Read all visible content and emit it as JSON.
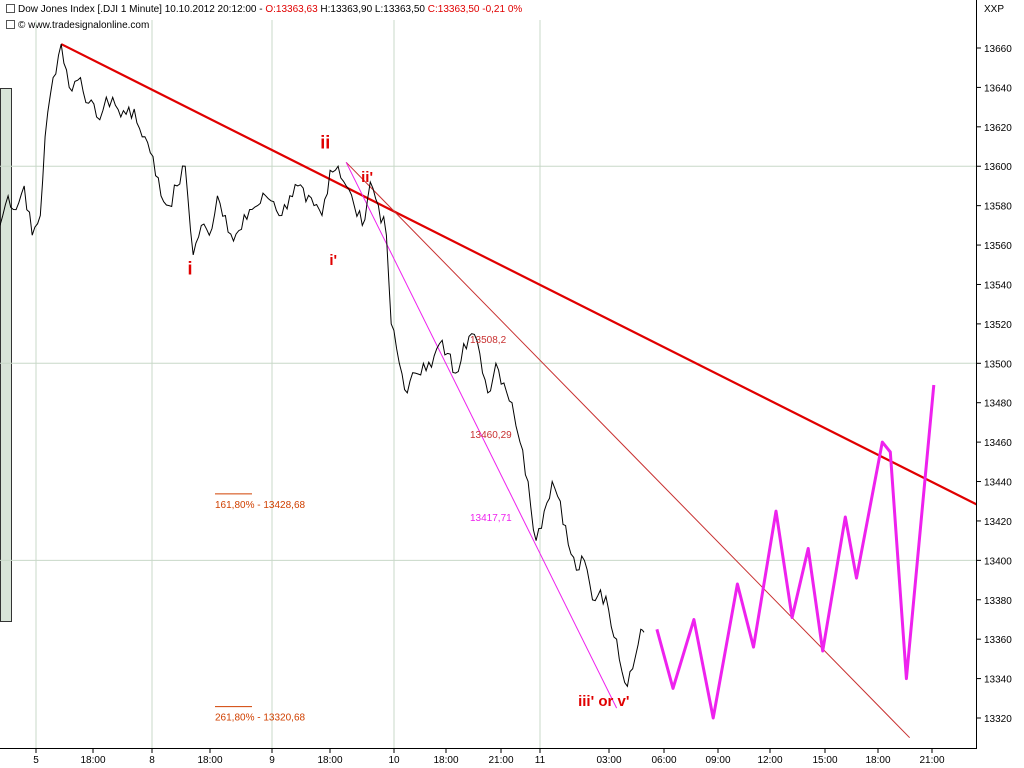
{
  "header": {
    "instrument": "Dow Jones Index [.DJI  1 Minute] 10.10.2012 20:12:00 - ",
    "open": "O:13363,63",
    "high": "H:13363,90",
    "low": "L:13363,50",
    "close": "C:13363,50",
    "change": "-0,21",
    "change_pct": "0%",
    "source": "© www.tradesignalonline.com",
    "symbol": "XXP"
  },
  "colors": {
    "price": "#000000",
    "trendline": "#e00000",
    "thin_line": "#c83030",
    "projection": "#ee22ee",
    "fib": "#d04000",
    "grid": "#c8d8c8",
    "negative": "#e00000"
  },
  "chart_data": {
    "type": "line",
    "title": "Dow Jones Index [.DJI  1 Minute]",
    "ylim": [
      13310,
      13680
    ],
    "y_ticks": [
      13320,
      13340,
      13360,
      13380,
      13400,
      13420,
      13440,
      13460,
      13480,
      13500,
      13520,
      13540,
      13560,
      13580,
      13600,
      13620,
      13640,
      13660
    ],
    "y_tick_labels": [
      "13320",
      "13340",
      "13360",
      "13380",
      "13400",
      "13420",
      "13440",
      "13460",
      "13480",
      "13500",
      "13520",
      "13540",
      "13560",
      "13580",
      "13600",
      "13620",
      "13640",
      "13660"
    ],
    "x_tick_labels": [
      "5",
      "18:00",
      "8",
      "18:00",
      "9",
      "18:00",
      "10",
      "18:00",
      "21:00",
      "11",
      "03:00",
      "06:00",
      "09:00",
      "12:00",
      "15:00",
      "18:00",
      "21:00"
    ],
    "x_major_labels": [
      "5",
      "8",
      "9",
      "10",
      "11"
    ],
    "grid": true,
    "price_series": {
      "name": "Dow Jones Index",
      "points": [
        [
          0.0,
          13570
        ],
        [
          0.5,
          13585
        ],
        [
          1.0,
          13578
        ],
        [
          1.5,
          13590
        ],
        [
          2.0,
          13565
        ],
        [
          2.5,
          13575
        ],
        [
          2.8,
          13615
        ],
        [
          3.3,
          13645
        ],
        [
          3.8,
          13662
        ],
        [
          4.3,
          13640
        ],
        [
          5.0,
          13645
        ],
        [
          5.5,
          13632
        ],
        [
          6.0,
          13625
        ],
        [
          7.0,
          13635
        ],
        [
          7.5,
          13625
        ],
        [
          8.0,
          13630
        ],
        [
          8.5,
          13622
        ],
        [
          9.0,
          13615
        ],
        [
          9.5,
          13605
        ],
        [
          10.0,
          13585
        ],
        [
          10.5,
          13580
        ],
        [
          11.0,
          13590
        ],
        [
          11.5,
          13600
        ],
        [
          12.0,
          13555
        ],
        [
          12.5,
          13570
        ],
        [
          13.0,
          13565
        ],
        [
          13.5,
          13585
        ],
        [
          14.0,
          13575
        ],
        [
          14.5,
          13562
        ],
        [
          15.0,
          13568
        ],
        [
          15.5,
          13578
        ],
        [
          16.0,
          13580
        ],
        [
          16.5,
          13585
        ],
        [
          17.0,
          13582
        ],
        [
          17.5,
          13575
        ],
        [
          18.0,
          13585
        ],
        [
          18.5,
          13590
        ],
        [
          19.0,
          13582
        ],
        [
          19.5,
          13580
        ],
        [
          20.0,
          13575
        ],
        [
          20.5,
          13598
        ],
        [
          21.0,
          13600
        ],
        [
          21.5,
          13590
        ],
        [
          22.0,
          13580
        ],
        [
          22.5,
          13570
        ],
        [
          23.0,
          13592
        ],
        [
          23.5,
          13580
        ],
        [
          24.0,
          13565
        ],
        [
          24.3,
          13520
        ],
        [
          24.8,
          13500
        ],
        [
          25.3,
          13485
        ],
        [
          25.8,
          13495
        ],
        [
          26.3,
          13500
        ],
        [
          26.8,
          13498
        ],
        [
          27.3,
          13510
        ],
        [
          27.8,
          13505
        ],
        [
          28.3,
          13495
        ],
        [
          28.8,
          13510
        ],
        [
          29.3,
          13515
        ],
        [
          29.8,
          13505
        ],
        [
          30.3,
          13485
        ],
        [
          30.8,
          13500
        ],
        [
          31.3,
          13490
        ],
        [
          31.8,
          13480
        ],
        [
          32.3,
          13460
        ],
        [
          32.8,
          13440
        ],
        [
          33.3,
          13410
        ],
        [
          33.8,
          13425
        ],
        [
          34.3,
          13440
        ],
        [
          34.8,
          13430
        ],
        [
          35.3,
          13408
        ],
        [
          35.8,
          13395
        ],
        [
          36.3,
          13400
        ],
        [
          36.8,
          13380
        ],
        [
          37.3,
          13385
        ],
        [
          37.8,
          13375
        ],
        [
          38.3,
          13360
        ],
        [
          38.8,
          13338
        ],
        [
          39.3,
          13345
        ],
        [
          39.8,
          13365
        ],
        [
          40.0,
          13363.5
        ]
      ]
    },
    "projection_series": {
      "name": "projection",
      "points": [
        [
          40.8,
          13365
        ],
        [
          41.8,
          13335
        ],
        [
          43.1,
          13370
        ],
        [
          44.3,
          13320
        ],
        [
          45.8,
          13388
        ],
        [
          46.8,
          13356
        ],
        [
          48.2,
          13425
        ],
        [
          49.2,
          13371
        ],
        [
          50.2,
          13406
        ],
        [
          51.1,
          13354
        ],
        [
          52.5,
          13422
        ],
        [
          53.2,
          13391
        ],
        [
          54.8,
          13460
        ],
        [
          55.3,
          13455
        ],
        [
          56.3,
          13340
        ],
        [
          58.0,
          13489
        ]
      ]
    },
    "trend_lines": [
      {
        "kind": "main",
        "from": [
          3.8,
          13662
        ],
        "to": [
          70,
          13390
        ]
      },
      {
        "kind": "thin",
        "from": [
          21.5,
          13602
        ],
        "to": [
          56.5,
          13310
        ]
      },
      {
        "kind": "magenta",
        "from": [
          21.5,
          13602
        ],
        "to": [
          38.3,
          13325
        ]
      }
    ],
    "horizontal_levels": [
      {
        "value": 13428.68,
        "label": "161,80% - 13428,68"
      },
      {
        "value": 13320.68,
        "label": "261,80% - 13320,68"
      }
    ],
    "price_labels": [
      {
        "text": "13508,2",
        "kind": "thin"
      },
      {
        "text": "13460,29",
        "kind": "thin"
      },
      {
        "text": "13417,71",
        "kind": "magenta"
      }
    ],
    "wave_labels": [
      {
        "text": "i",
        "x": 11.8,
        "y": 13545
      },
      {
        "text": "ii",
        "x": 20.2,
        "y": 13609
      },
      {
        "text": "ii'",
        "x": 22.8,
        "y": 13592
      },
      {
        "text": "i'",
        "x": 20.7,
        "y": 13550
      },
      {
        "text": "iii' or v'",
        "x": 37.5,
        "y": 13326
      }
    ]
  }
}
